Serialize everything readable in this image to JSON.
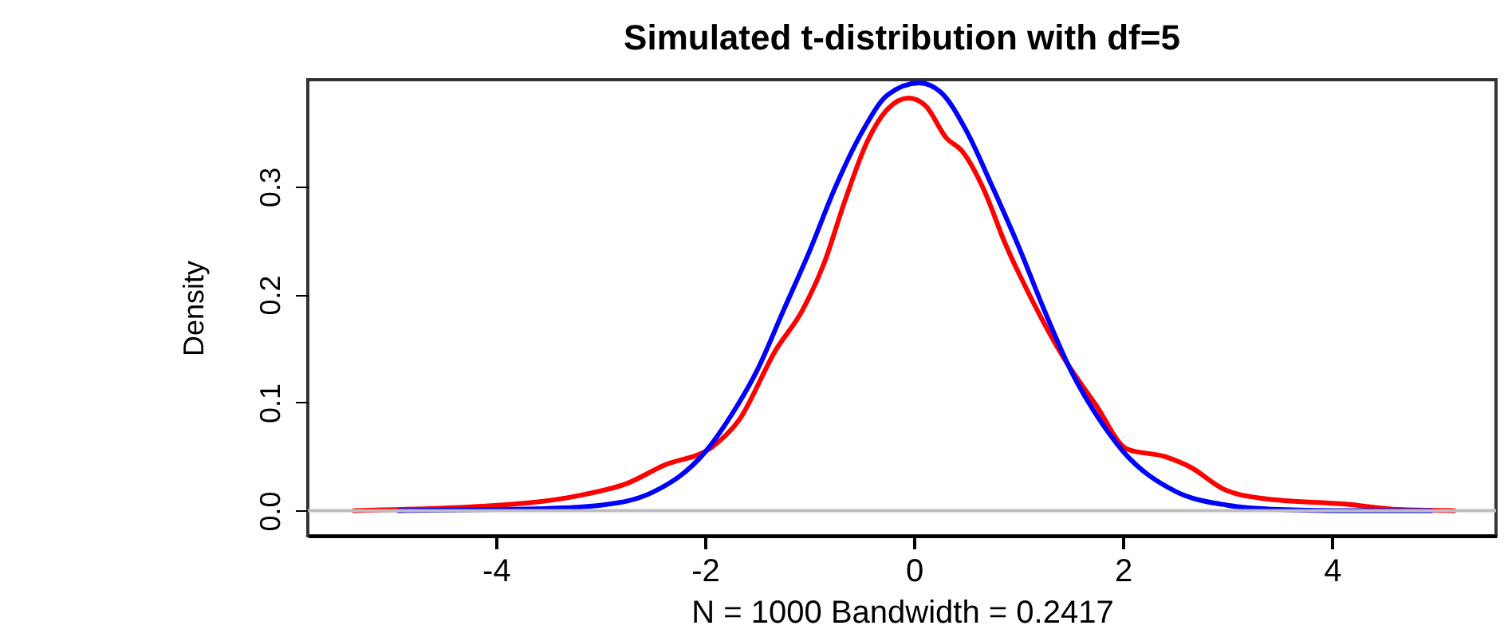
{
  "chart_data": {
    "type": "line",
    "title": "Simulated t-distribution with df=5",
    "xlabel": "N = 1000   Bandwidth = 0.2417",
    "ylabel": "Density",
    "xlim": [
      -5.8,
      5.57
    ],
    "ylim": [
      -0.0233,
      0.399
    ],
    "xticks": [
      -4,
      -2,
      0,
      2,
      4
    ],
    "yticks": [
      {
        "value": 0,
        "label": "0.0"
      },
      {
        "value": 0.1,
        "label": "0.1"
      },
      {
        "value": 0.2,
        "label": "0.2"
      },
      {
        "value": 0.3,
        "label": "0.3"
      }
    ],
    "grid": false,
    "legend": false,
    "line_style": "solid",
    "marker": "none",
    "ref_lines": [
      {
        "axis": "y",
        "value": 0,
        "color": "#bebebe"
      }
    ],
    "series": [
      {
        "color": "#ff0000",
        "x": [
          -5.36,
          -3.71,
          -3.15,
          -2.75,
          -2.39,
          -1.93,
          -1.68,
          -1.32,
          -1.07,
          -0.86,
          -0.66,
          -0.45,
          -0.25,
          -0.05,
          0.11,
          0.31,
          0.46,
          0.67,
          0.87,
          1.13,
          1.43,
          1.74,
          2.04,
          2.4,
          2.65,
          2.96,
          3.36,
          4.13,
          4.64,
          5.17
        ],
        "values": [
          0,
          0.007,
          0.015,
          0.025,
          0.042,
          0.059,
          0.083,
          0.149,
          0.185,
          0.229,
          0.287,
          0.341,
          0.372,
          0.382,
          0.375,
          0.345,
          0.333,
          0.297,
          0.248,
          0.195,
          0.142,
          0.098,
          0.057,
          0.05,
          0.04,
          0.02,
          0.011,
          0.006,
          0.001,
          0
        ]
      },
      {
        "color": "#0000ff",
        "x": [
          -4.93,
          -4,
          -3.5,
          -3,
          -2.5,
          -2,
          -1.75,
          -1.5,
          -1.25,
          -1,
          -0.75,
          -0.5,
          -0.25,
          0.05,
          0.25,
          0.5,
          0.75,
          1,
          1.25,
          1.5,
          1.75,
          2,
          2.5,
          3,
          3.5,
          4,
          4.95
        ],
        "values": [
          0,
          0.001,
          0.002,
          0.005,
          0.017,
          0.054,
          0.088,
          0.13,
          0.185,
          0.24,
          0.3,
          0.35,
          0.385,
          0.396,
          0.388,
          0.352,
          0.3,
          0.245,
          0.185,
          0.13,
          0.088,
          0.055,
          0.018,
          0.005,
          0.001,
          0,
          0
        ]
      }
    ]
  }
}
